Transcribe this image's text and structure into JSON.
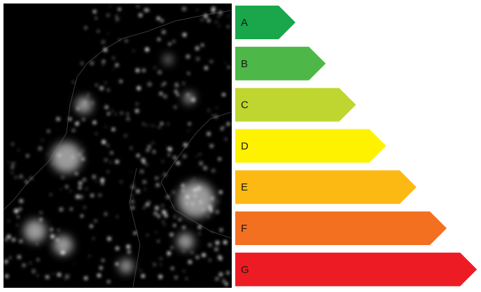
{
  "energy_labels": {
    "classes": [
      "A",
      "B",
      "C",
      "D",
      "E",
      "F",
      "G"
    ]
  }
}
